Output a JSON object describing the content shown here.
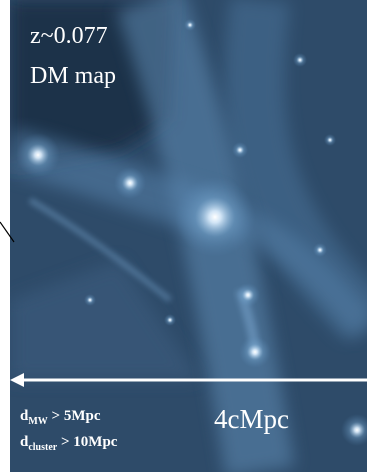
{
  "labels": {
    "redshift": "z~0.077",
    "map_name": "DM map",
    "scale_bar": "4cMpc",
    "conditions": [
      {
        "symbol": "d",
        "subscript": "MW",
        "text": " > 5Mpc"
      },
      {
        "symbol": "d",
        "subscript": "cluster",
        "text": " > 10Mpc"
      }
    ]
  }
}
